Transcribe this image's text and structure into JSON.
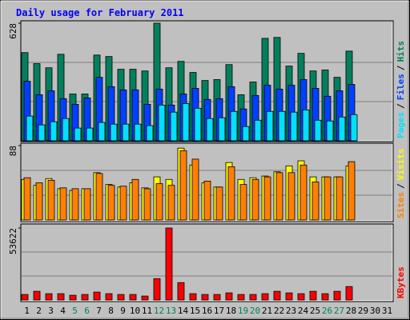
{
  "chart_data": {
    "type": "bar",
    "title": "Daily usage for February 2011",
    "categories": [
      "1",
      "2",
      "3",
      "4",
      "5",
      "6",
      "7",
      "8",
      "9",
      "10",
      "11",
      "12",
      "13",
      "14",
      "15",
      "16",
      "17",
      "18",
      "19",
      "20",
      "21",
      "22",
      "23",
      "24",
      "25",
      "26",
      "27",
      "28",
      "29",
      "30",
      "31"
    ],
    "category_colors": [
      "#000000",
      "#000000",
      "#000000",
      "#000000",
      "#00805c",
      "#00805c",
      "#000000",
      "#000000",
      "#000000",
      "#000000",
      "#000000",
      "#00805c",
      "#00805c",
      "#000000",
      "#000000",
      "#000000",
      "#000000",
      "#000000",
      "#00805c",
      "#00805c",
      "#000000",
      "#000000",
      "#000000",
      "#000000",
      "#000000",
      "#00805c",
      "#00805c",
      "#000000",
      "#000000",
      "#000000",
      "#000000"
    ],
    "legend_separator": "/",
    "panels": [
      {
        "ylim": [
          0,
          628
        ],
        "yticks": [
          628
        ],
        "series": [
          {
            "name": "Hits",
            "color": "#00805c",
            "values": [
              471,
              412,
              390,
              462,
              250,
              250,
              458,
              450,
              382,
              382,
              373,
              628,
              390,
              424,
              365,
              322,
              327,
              407,
              246,
              314,
              547,
              552,
              399,
              467,
              373,
              378,
              339,
              479,
              null,
              null,
              null
            ]
          },
          {
            "name": "Files",
            "color": "#0040ff",
            "values": [
              318,
              246,
              267,
              225,
              195,
              229,
              339,
              289,
              272,
              272,
              195,
              276,
              191,
              250,
              280,
              221,
              225,
              289,
              170,
              242,
              297,
              276,
              297,
              327,
              280,
              238,
              267,
              301,
              null,
              null,
              null
            ]
          },
          {
            "name": "Pages",
            "color": "#00e0ff",
            "values": [
              132,
              85,
              102,
              119,
              68,
              68,
              98,
              89,
              89,
              89,
              81,
              191,
              153,
              199,
              174,
              119,
              123,
              157,
              76,
              110,
              157,
              157,
              153,
              165,
              110,
              106,
              127,
              140,
              null,
              null,
              null
            ]
          }
        ]
      },
      {
        "ylim": [
          0,
          88
        ],
        "yticks": [
          88
        ],
        "series": [
          {
            "name": "Visits",
            "color": "#ffff00",
            "values": [
              48,
              41,
              49,
              37,
              35,
              37,
              56,
              42,
              39,
              44,
              38,
              51,
              48,
              85,
              65,
              44,
              39,
              68,
              48,
              50,
              52,
              57,
              64,
              70,
              51,
              51,
              51,
              64,
              null,
              null,
              null
            ]
          },
          {
            "name": "Sites",
            "color": "#ff8000",
            "values": [
              50,
              44,
              47,
              38,
              37,
              37,
              55,
              41,
              40,
              48,
              37,
              43,
              41,
              82,
              72,
              46,
              39,
              63,
              42,
              48,
              51,
              56,
              56,
              65,
              45,
              51,
              51,
              69,
              null,
              null,
              null
            ]
          }
        ]
      },
      {
        "ylim": [
          0,
          53622
        ],
        "yticks": [
          53622
        ],
        "series": [
          {
            "name": "KBytes",
            "color": "#ff0000",
            "values": [
              4125,
              6482,
              4714,
              4714,
              3536,
              4125,
              5893,
              4714,
              4125,
              4125,
              2947,
              15911,
              53622,
              12964,
              4714,
              4125,
              4125,
              5304,
              4125,
              4125,
              4714,
              6482,
              5304,
              4714,
              6482,
              4714,
              6482,
              10018,
              null,
              null,
              null
            ]
          }
        ]
      }
    ]
  }
}
